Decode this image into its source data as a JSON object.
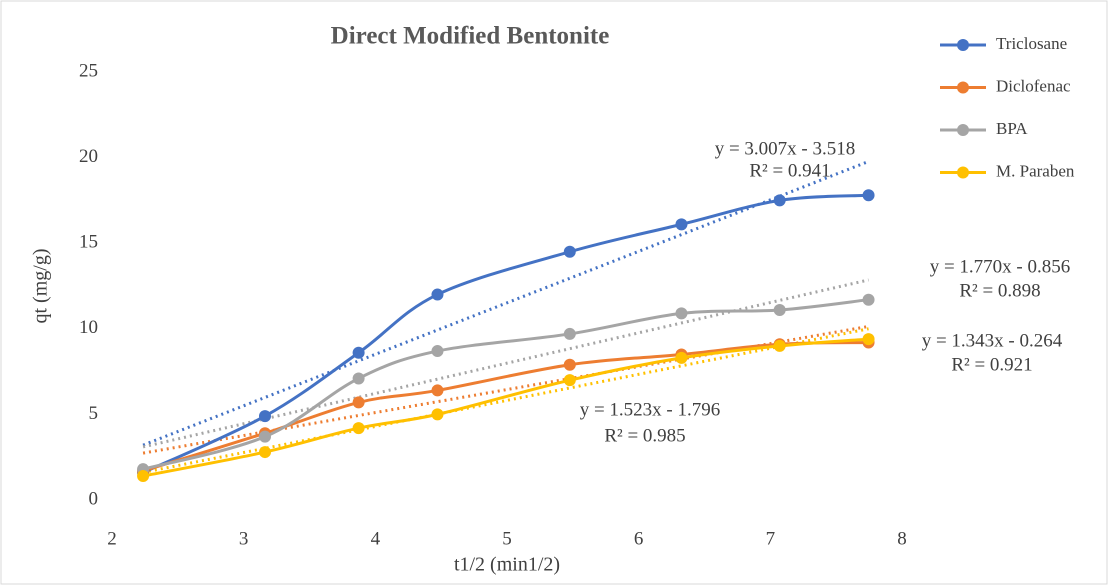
{
  "chart_data": {
    "type": "line",
    "title": "Direct Modified Bentonite",
    "x_label": "t1/2 (min1/2)",
    "y_label": "qt (mg/g)",
    "x": [
      2.236,
      3.162,
      3.873,
      4.472,
      5.477,
      6.325,
      7.071,
      7.746
    ],
    "series": [
      {
        "name": "Triclosane",
        "color": "#4472c4",
        "values": [
          1.6,
          4.9,
          8.6,
          12.0,
          14.5,
          16.1,
          17.5,
          17.8
        ],
        "trendline": {
          "slope": 3.007,
          "intercept": -3.518
        }
      },
      {
        "name": "Diclofenac",
        "color": "#ed7d31",
        "values": [
          1.7,
          3.9,
          5.7,
          6.4,
          7.9,
          8.5,
          9.1,
          9.2
        ],
        "trendline": {
          "slope": 1.343,
          "intercept": -0.264
        }
      },
      {
        "name": "BPA",
        "color": "#a5a5a5",
        "values": [
          1.8,
          3.7,
          7.1,
          8.7,
          9.7,
          10.9,
          11.1,
          11.7
        ],
        "trendline": {
          "slope": 1.77,
          "intercept": -0.856
        }
      },
      {
        "name": "M. Paraben",
        "color": "#ffc000",
        "values": [
          1.4,
          2.8,
          4.2,
          5.0,
          7.0,
          8.3,
          9.0,
          9.4
        ],
        "trendline": {
          "slope": 1.523,
          "intercept": -1.796
        }
      }
    ],
    "annotations": [
      {
        "text": "y = 3.007x - 3.518"
      },
      {
        "text": "R² = 0.941"
      },
      {
        "text": "y = 1.770x - 0.856"
      },
      {
        "text": "R² = 0.898"
      },
      {
        "text": "y = 1.343x - 0.264"
      },
      {
        "text": "R² = 0.921"
      },
      {
        "text": "y = 1.523x - 1.796"
      },
      {
        "text": "R² = 0.985"
      }
    ],
    "xlim": [
      2,
      8
    ],
    "xticks": [
      2,
      3,
      4,
      5,
      6,
      7,
      8
    ],
    "ylim": [
      0,
      25
    ],
    "yticks": [
      0,
      5,
      10,
      15,
      20,
      25
    ],
    "legend": "right"
  }
}
